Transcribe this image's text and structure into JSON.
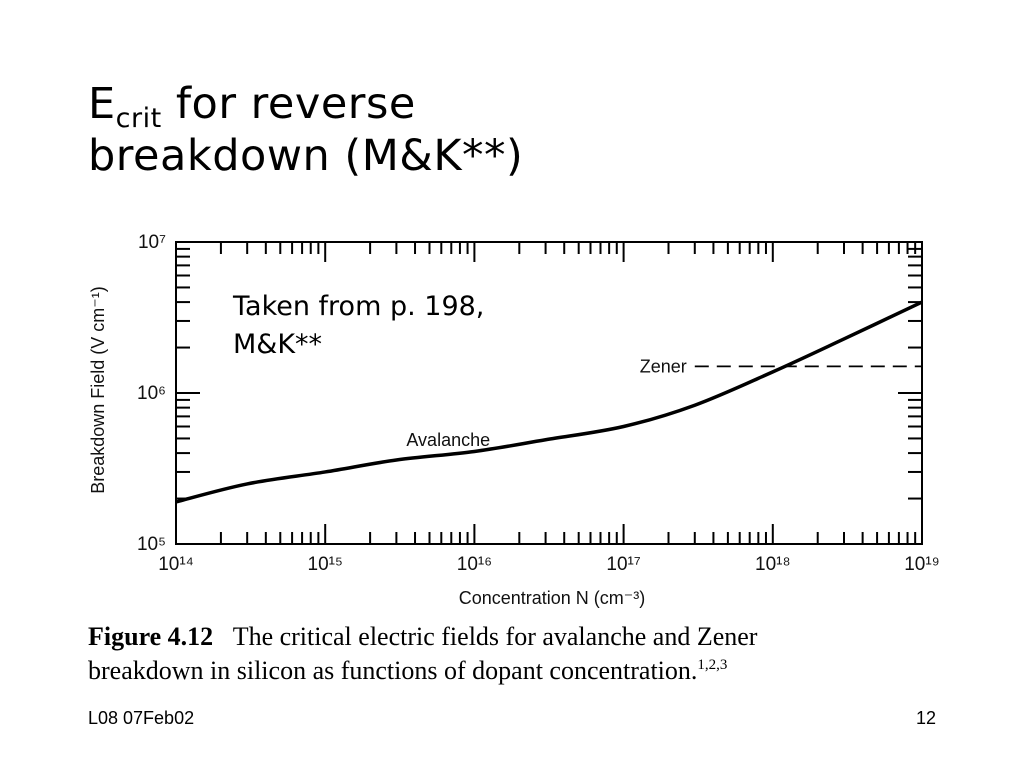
{
  "slide": {
    "title_main": "E",
    "title_sub": "crit",
    "title_rest": " for reverse",
    "title_line2": "breakdown (M&K**)",
    "note_line1": "Taken from p. 198,",
    "note_line2": "M&K**",
    "footer_left": "L08 07Feb02",
    "footer_right": "12"
  },
  "figure": {
    "label": "Figure 4.12",
    "caption_line1": "The critical electric fields for avalanche and Zener",
    "caption_line2": "breakdown in silicon as functions of dopant concentration.",
    "caption_refs": "1,2,3"
  },
  "chart_data": {
    "type": "line",
    "xscale": "log",
    "yscale": "log",
    "xlim": [
      100000000000000.0,
      1e+19
    ],
    "ylim": [
      100000.0,
      10000000.0
    ],
    "xlabel": "Concentration N (cm⁻³)",
    "ylabel": "Breakdown Field (V cm⁻¹)",
    "x_ticks": [
      {
        "value": 100000000000000.0,
        "label": "10¹⁴"
      },
      {
        "value": 1000000000000000.0,
        "label": "10¹⁵"
      },
      {
        "value": 1e+16,
        "label": "10¹⁶"
      },
      {
        "value": 1e+17,
        "label": "10¹⁷"
      },
      {
        "value": 1e+18,
        "label": "10¹⁸"
      },
      {
        "value": 1e+19,
        "label": "10¹⁹"
      }
    ],
    "y_ticks": [
      {
        "value": 100000.0,
        "label": "10⁵"
      },
      {
        "value": 1000000.0,
        "label": "10⁶"
      },
      {
        "value": 10000000.0,
        "label": "10⁷"
      }
    ],
    "series": [
      {
        "name": "Avalanche",
        "style": "solid",
        "x": [
          100000000000000.0,
          300000000000000.0,
          1000000000000000.0,
          3000000000000000.0,
          1e+16,
          3e+16,
          1e+17,
          3e+17,
          1e+18,
          3e+18,
          1e+19
        ],
        "y": [
          190000,
          250000,
          300000,
          360000,
          410000,
          490000,
          600000,
          830000,
          1380000,
          2280000,
          4000000
        ]
      },
      {
        "name": "Zener",
        "style": "dashed",
        "x": [
          3e+17,
          1e+19
        ],
        "y": [
          1500000,
          1500000
        ]
      }
    ],
    "grid": false,
    "legend": "inline labels"
  }
}
